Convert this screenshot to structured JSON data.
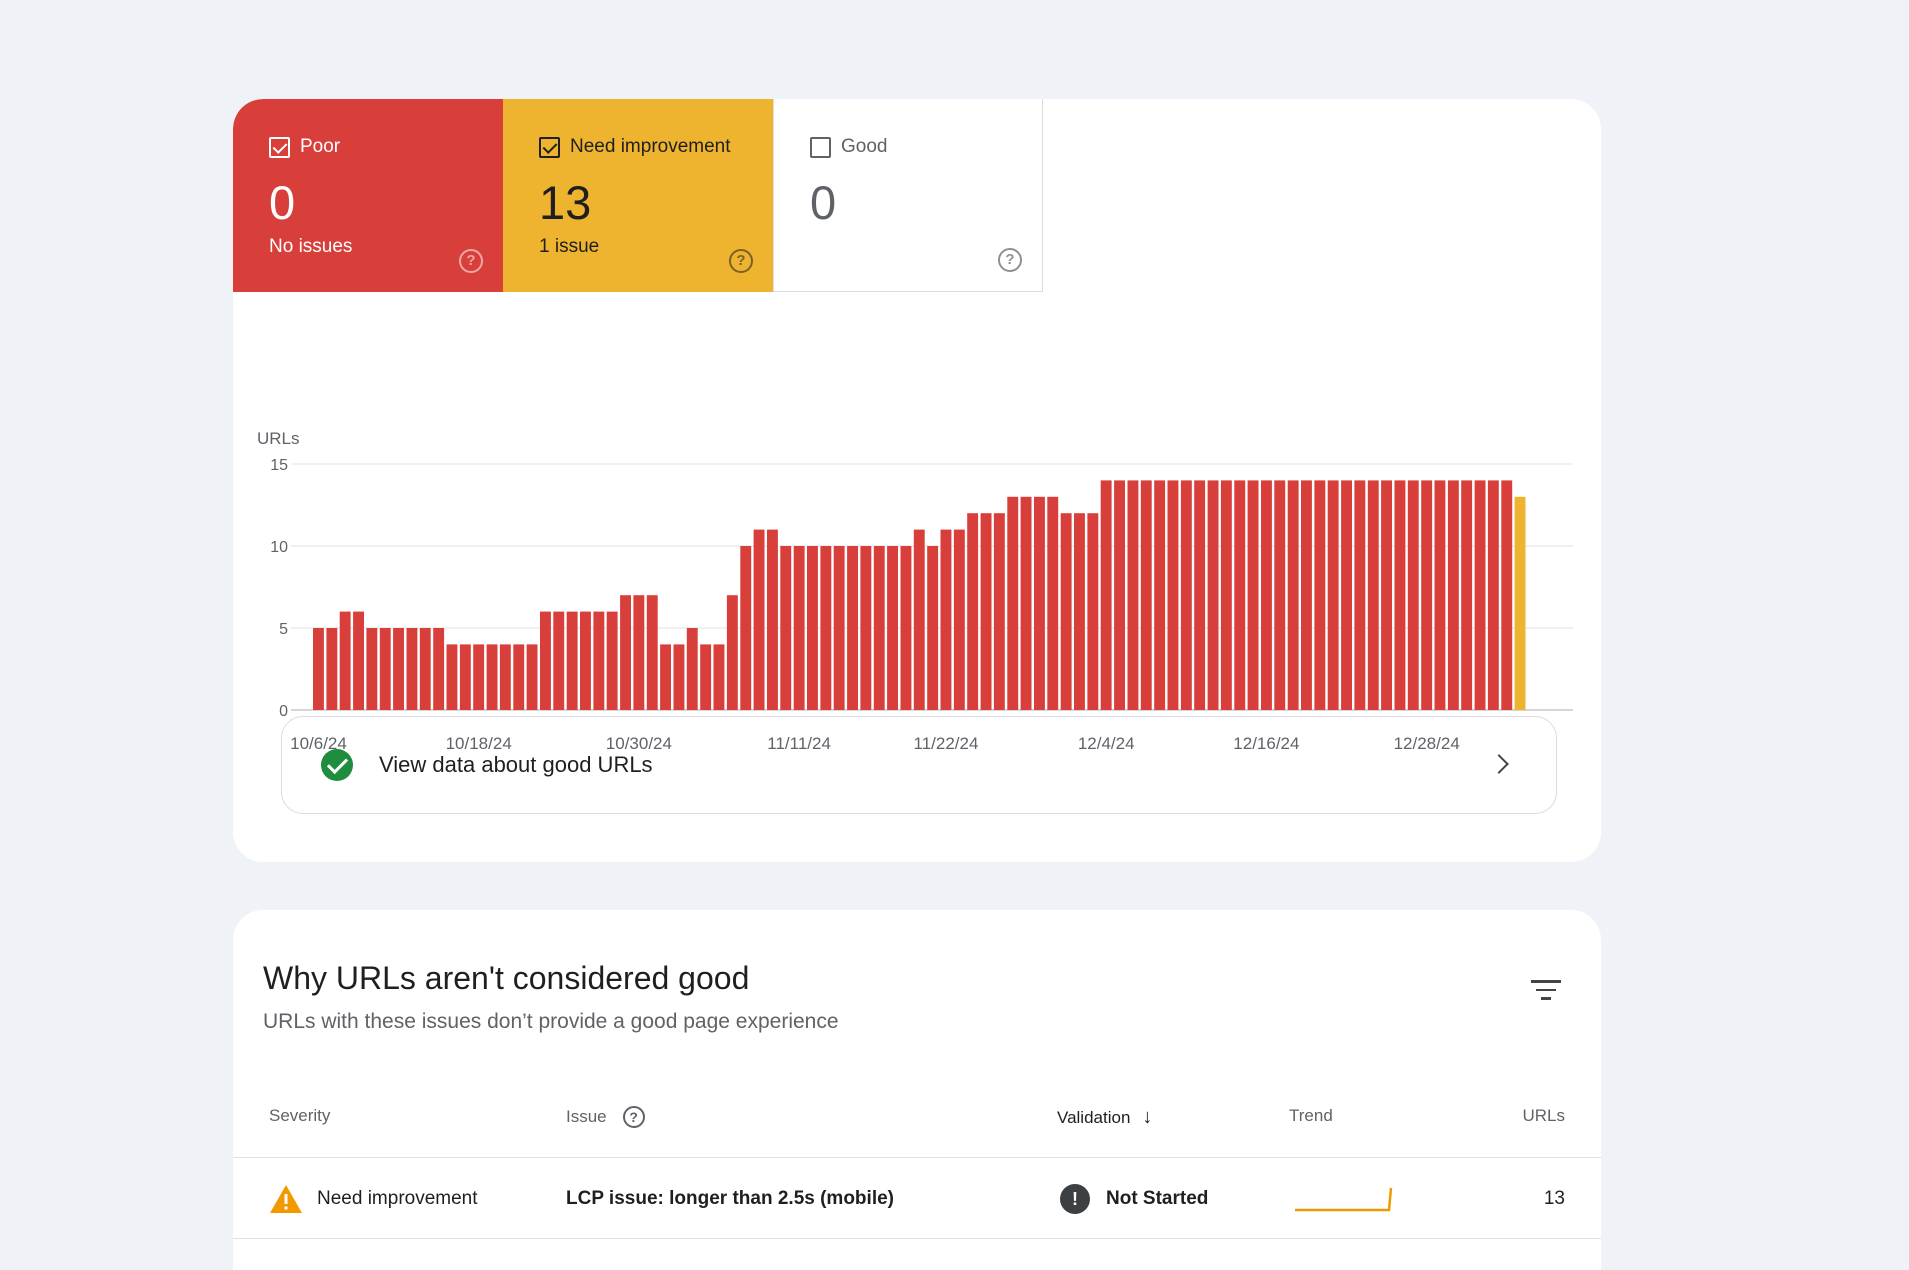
{
  "tiles": {
    "poor": {
      "label": "Poor",
      "count": "0",
      "sub": "No issues",
      "checked": true
    },
    "need": {
      "label": "Need improvement",
      "count": "13",
      "sub": "1 issue",
      "checked": true
    },
    "good": {
      "label": "Good",
      "count": "0",
      "checked": false
    }
  },
  "chart_data": {
    "type": "bar",
    "ylabel": "URLs",
    "ylim": [
      0,
      15
    ],
    "yticks": [
      "0",
      "5",
      "10",
      "15"
    ],
    "xtick_labels": [
      "10/6/24",
      "10/18/24",
      "10/30/24",
      "11/11/24",
      "11/22/24",
      "12/4/24",
      "12/16/24",
      "12/28/24"
    ],
    "xtick_indices": [
      0,
      12,
      24,
      36,
      47,
      59,
      71,
      83
    ],
    "series": [
      {
        "name": "Poor",
        "color": "#d83e3a",
        "values": [
          5,
          5,
          6,
          6,
          5,
          5,
          5,
          5,
          5,
          5,
          4,
          4,
          4,
          4,
          4,
          4,
          4,
          6,
          6,
          6,
          6,
          6,
          6,
          7,
          7,
          7,
          4,
          4,
          5,
          4,
          4,
          7,
          10,
          11,
          11,
          10,
          10,
          10,
          10,
          10,
          10,
          10,
          10,
          10,
          10,
          11,
          10,
          11,
          11,
          12,
          12,
          12,
          13,
          13,
          13,
          13,
          12,
          12,
          12,
          14,
          14,
          14,
          14,
          14,
          14,
          14,
          14,
          14,
          14,
          14,
          14,
          14,
          14,
          14,
          14,
          14,
          14,
          14,
          14,
          14,
          14,
          14,
          14,
          14,
          14,
          14,
          14,
          14,
          14,
          14,
          0
        ]
      },
      {
        "name": "Need improvement",
        "color": "#eeb32f",
        "values": [
          0,
          0,
          0,
          0,
          0,
          0,
          0,
          0,
          0,
          0,
          0,
          0,
          0,
          0,
          0,
          0,
          0,
          0,
          0,
          0,
          0,
          0,
          0,
          0,
          0,
          0,
          0,
          0,
          0,
          0,
          0,
          0,
          0,
          0,
          0,
          0,
          0,
          0,
          0,
          0,
          0,
          0,
          0,
          0,
          0,
          0,
          0,
          0,
          0,
          0,
          0,
          0,
          0,
          0,
          0,
          0,
          0,
          0,
          0,
          0,
          0,
          0,
          0,
          0,
          0,
          0,
          0,
          0,
          0,
          0,
          0,
          0,
          0,
          0,
          0,
          0,
          0,
          0,
          0,
          0,
          0,
          0,
          0,
          0,
          0,
          0,
          0,
          0,
          0,
          0,
          13
        ]
      }
    ]
  },
  "good_link": {
    "label": "View data about good URLs"
  },
  "issues": {
    "title": "Why URLs aren't considered good",
    "subtitle": "URLs with these issues don’t provide a good page experience",
    "columns": {
      "severity": "Severity",
      "issue": "Issue",
      "validation": "Validation",
      "trend": "Trend",
      "urls": "URLs"
    },
    "rows": [
      {
        "severity": "Need improvement",
        "issue": "LCP issue: longer than 2.5s (mobile)",
        "validation": "Not Started",
        "urls": "13",
        "trend_color": "#f29900"
      }
    ]
  }
}
